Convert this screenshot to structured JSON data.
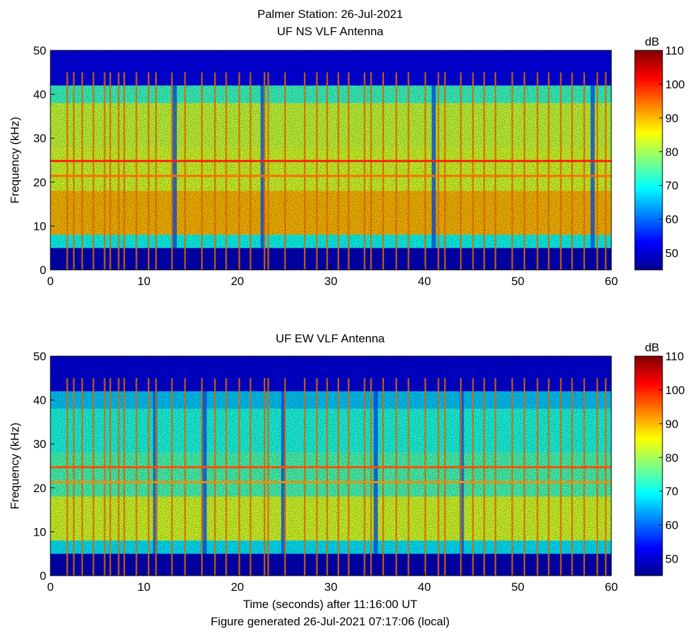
{
  "figure": {
    "title_line1": "Palmer Station: 26-Jul-2021",
    "xlabel": "Time (seconds) after 11:16:00 UT",
    "footer": "Figure generated 26-Jul-2021 07:17:06 (local)"
  },
  "chart_data": [
    {
      "type": "heatmap",
      "title": "UF NS VLF Antenna",
      "ylabel": "Frequency (kHz)",
      "xlabel": "",
      "xlim": [
        0,
        60
      ],
      "ylim": [
        0,
        50
      ],
      "xticks": [
        0,
        10,
        20,
        30,
        40,
        50,
        60
      ],
      "yticks": [
        0,
        10,
        20,
        30,
        40,
        50
      ],
      "colorbar": {
        "label": "dB",
        "range": [
          45,
          110
        ],
        "ticks": [
          50,
          60,
          70,
          80,
          90,
          100,
          110
        ],
        "colormap": "jet"
      },
      "bands": [
        {
          "fmin": 0,
          "fmax": 5,
          "db": 49
        },
        {
          "fmin": 5,
          "fmax": 8,
          "db": 70
        },
        {
          "fmin": 8,
          "fmax": 18,
          "db": 90
        },
        {
          "fmin": 18,
          "fmax": 28,
          "db": 83
        },
        {
          "fmin": 28,
          "fmax": 38,
          "db": 82
        },
        {
          "fmin": 38,
          "fmax": 42,
          "db": 73
        },
        {
          "fmin": 42,
          "fmax": 50,
          "db": 52
        }
      ],
      "tones": [
        {
          "freq_khz": 24.8,
          "db": 100
        },
        {
          "freq_khz": 21.4,
          "db": 95
        }
      ],
      "sferic_times_s": [
        1.8,
        2.5,
        3.4,
        4.6,
        5.8,
        6.4,
        7.3,
        7.9,
        9.2,
        10.5,
        11.3,
        13.0,
        14.4,
        16.2,
        17.6,
        18.8,
        20.2,
        21.4,
        22.9,
        23.3,
        25.1,
        27.2,
        28.5,
        29.6,
        30.8,
        31.9,
        33.6,
        34.3,
        35.6,
        37.0,
        38.3,
        40.1,
        41.5,
        42.2,
        43.9,
        45.2,
        46.4,
        47.6,
        49.4,
        50.7,
        52.1,
        53.3,
        54.6,
        55.8,
        57.1,
        58.5,
        59.4
      ],
      "dip_times_s": [
        13.3,
        22.7,
        41.0,
        58.0
      ]
    },
    {
      "type": "heatmap",
      "title": "UF EW VLF Antenna",
      "ylabel": "Frequency (kHz)",
      "xlabel": "Time (seconds) after 11:16:00 UT",
      "xlim": [
        0,
        60
      ],
      "ylim": [
        0,
        50
      ],
      "xticks": [
        0,
        10,
        20,
        30,
        40,
        50,
        60
      ],
      "yticks": [
        0,
        10,
        20,
        30,
        40,
        50
      ],
      "colorbar": {
        "label": "dB",
        "range": [
          45,
          110
        ],
        "ticks": [
          50,
          60,
          70,
          80,
          90,
          100,
          110
        ],
        "colormap": "jet"
      },
      "bands": [
        {
          "fmin": 0,
          "fmax": 5,
          "db": 49
        },
        {
          "fmin": 5,
          "fmax": 8,
          "db": 68
        },
        {
          "fmin": 8,
          "fmax": 18,
          "db": 83
        },
        {
          "fmin": 18,
          "fmax": 28,
          "db": 74
        },
        {
          "fmin": 28,
          "fmax": 38,
          "db": 71
        },
        {
          "fmin": 38,
          "fmax": 42,
          "db": 66
        },
        {
          "fmin": 42,
          "fmax": 50,
          "db": 51
        }
      ],
      "tones": [
        {
          "freq_khz": 24.7,
          "db": 97
        },
        {
          "freq_khz": 21.3,
          "db": 93
        }
      ],
      "sferic_times_s": [
        1.8,
        2.5,
        3.4,
        4.6,
        5.8,
        6.4,
        7.3,
        7.9,
        9.2,
        10.5,
        11.3,
        13.0,
        14.4,
        16.2,
        17.6,
        18.8,
        20.2,
        21.4,
        22.9,
        23.3,
        25.1,
        27.2,
        28.5,
        29.6,
        30.8,
        31.9,
        33.6,
        34.3,
        35.6,
        37.0,
        38.3,
        40.1,
        41.5,
        42.2,
        43.9,
        45.2,
        46.4,
        47.6,
        49.4,
        50.7,
        52.1,
        53.3,
        54.6,
        55.8,
        57.1,
        58.5,
        59.4
      ],
      "dip_times_s": [
        11.2,
        16.5,
        24.9,
        34.8,
        44.0
      ]
    }
  ]
}
